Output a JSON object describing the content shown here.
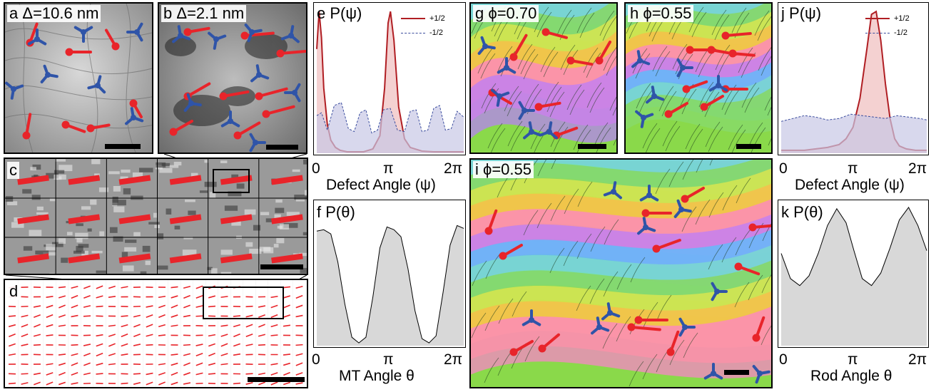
{
  "panels": {
    "a": {
      "letter": "a",
      "title": "Δ=10.6 nm"
    },
    "b": {
      "letter": "b",
      "title": "Δ=2.1 nm"
    },
    "c": {
      "letter": "c"
    },
    "d": {
      "letter": "d"
    },
    "e": {
      "letter": "e",
      "title": "P(ψ)",
      "xlabel": "Defect Angle (ψ)"
    },
    "f": {
      "letter": "f",
      "title": "P(θ)",
      "xlabel": "MT Angle θ"
    },
    "g": {
      "letter": "g",
      "title": "ϕ=0.70"
    },
    "h": {
      "letter": "h",
      "title": "ϕ=0.55"
    },
    "i": {
      "letter": "i",
      "title": "ϕ=0.55"
    },
    "j": {
      "letter": "j",
      "title": "P(ψ)",
      "xlabel": "Defect Angle (ψ)"
    },
    "k": {
      "letter": "k",
      "title": "P(θ)",
      "xlabel": "Rod Angle θ"
    }
  },
  "ticks": {
    "x": [
      "0",
      "π",
      "2π"
    ]
  },
  "colors": {
    "plus_half": "#b01e23",
    "plus_fill": "#f0c2c2",
    "minus_half": "#3b4d9e",
    "minus_fill": "#c8c8e6",
    "gray_fill": "#c8c8c8",
    "defect_red": "#e8242a",
    "defect_blue": "#2f54a8"
  },
  "chart_data": [
    {
      "panel": "e",
      "type": "area",
      "title": "P(ψ)",
      "xlabel": "Defect Angle (ψ)",
      "xlim": [
        0,
        6.283
      ],
      "x_ticks": [
        "0",
        "π",
        "2π"
      ],
      "series": [
        {
          "name": "+1/2",
          "x": [
            0.0,
            0.1,
            0.2,
            0.3,
            0.45,
            0.6,
            0.8,
            1.0,
            1.3,
            1.6,
            2.0,
            2.4,
            2.7,
            2.9,
            3.05,
            3.15,
            3.3,
            3.5,
            3.75,
            4.0,
            4.5,
            5.0,
            5.5,
            6.0,
            6.283
          ],
          "y": [
            0.72,
            0.98,
            0.8,
            0.45,
            0.2,
            0.09,
            0.04,
            0.02,
            0.01,
            0.01,
            0.01,
            0.03,
            0.12,
            0.45,
            0.9,
            0.98,
            0.78,
            0.32,
            0.1,
            0.04,
            0.015,
            0.01,
            0.01,
            0.01,
            0.01
          ]
        },
        {
          "name": "-1/2",
          "x": [
            0.0,
            0.2,
            0.45,
            0.75,
            1.05,
            1.35,
            1.6,
            1.85,
            2.1,
            2.35,
            2.6,
            2.85,
            3.14,
            3.45,
            3.75,
            4.0,
            4.25,
            4.5,
            4.75,
            5.0,
            5.25,
            5.5,
            5.75,
            6.0,
            6.283
          ],
          "y": [
            0.26,
            0.28,
            0.16,
            0.33,
            0.35,
            0.17,
            0.15,
            0.28,
            0.3,
            0.14,
            0.16,
            0.3,
            0.31,
            0.16,
            0.15,
            0.29,
            0.3,
            0.15,
            0.16,
            0.31,
            0.33,
            0.16,
            0.17,
            0.29,
            0.25
          ]
        }
      ]
    },
    {
      "panel": "f",
      "type": "area",
      "title": "P(θ)",
      "xlabel": "MT Angle θ",
      "xlim": [
        0,
        6.283
      ],
      "x_ticks": [
        "0",
        "π",
        "2π"
      ],
      "series": [
        {
          "name": "",
          "x": [
            0.0,
            0.3,
            0.6,
            0.9,
            1.2,
            1.5,
            1.8,
            2.1,
            2.4,
            2.7,
            3.0,
            3.3,
            3.6,
            3.9,
            4.2,
            4.5,
            4.8,
            5.1,
            5.4,
            5.7,
            6.0,
            6.283
          ],
          "y": [
            0.82,
            0.83,
            0.8,
            0.6,
            0.3,
            0.06,
            0.02,
            0.06,
            0.35,
            0.7,
            0.85,
            0.83,
            0.78,
            0.55,
            0.25,
            0.05,
            0.02,
            0.07,
            0.38,
            0.72,
            0.86,
            0.84
          ]
        }
      ]
    },
    {
      "panel": "j",
      "type": "area",
      "title": "P(ψ)",
      "xlabel": "Defect Angle (ψ)",
      "xlim": [
        0,
        6.283
      ],
      "x_ticks": [
        "0",
        "π",
        "2π"
      ],
      "series": [
        {
          "name": "+1/2",
          "x": [
            0.0,
            0.5,
            1.0,
            1.5,
            2.0,
            2.5,
            2.8,
            3.1,
            3.4,
            3.7,
            3.9,
            4.1,
            4.3,
            4.5,
            4.7,
            4.9,
            5.1,
            5.4,
            5.8,
            6.283
          ],
          "y": [
            0.02,
            0.02,
            0.02,
            0.03,
            0.04,
            0.06,
            0.1,
            0.18,
            0.38,
            0.72,
            0.96,
            0.98,
            0.78,
            0.48,
            0.24,
            0.1,
            0.05,
            0.03,
            0.02,
            0.02
          ]
        },
        {
          "name": "-1/2",
          "x": [
            0.0,
            0.5,
            1.0,
            1.5,
            2.0,
            2.5,
            3.0,
            3.5,
            4.0,
            4.5,
            5.0,
            5.5,
            6.0,
            6.283
          ],
          "y": [
            0.22,
            0.24,
            0.26,
            0.25,
            0.23,
            0.24,
            0.27,
            0.26,
            0.25,
            0.24,
            0.26,
            0.25,
            0.24,
            0.23
          ]
        }
      ]
    },
    {
      "panel": "k",
      "type": "area",
      "title": "P(θ)",
      "xlabel": "Rod Angle θ",
      "xlim": [
        0,
        6.283
      ],
      "x_ticks": [
        "0",
        "π",
        "2π"
      ],
      "series": [
        {
          "name": "",
          "x": [
            0.0,
            0.4,
            0.8,
            1.2,
            1.6,
            2.0,
            2.4,
            2.8,
            3.14,
            3.5,
            3.9,
            4.3,
            4.7,
            5.1,
            5.5,
            5.9,
            6.283
          ],
          "y": [
            0.66,
            0.48,
            0.43,
            0.5,
            0.66,
            0.86,
            0.98,
            0.88,
            0.68,
            0.48,
            0.43,
            0.52,
            0.7,
            0.9,
            0.99,
            0.86,
            0.68
          ]
        }
      ]
    }
  ]
}
